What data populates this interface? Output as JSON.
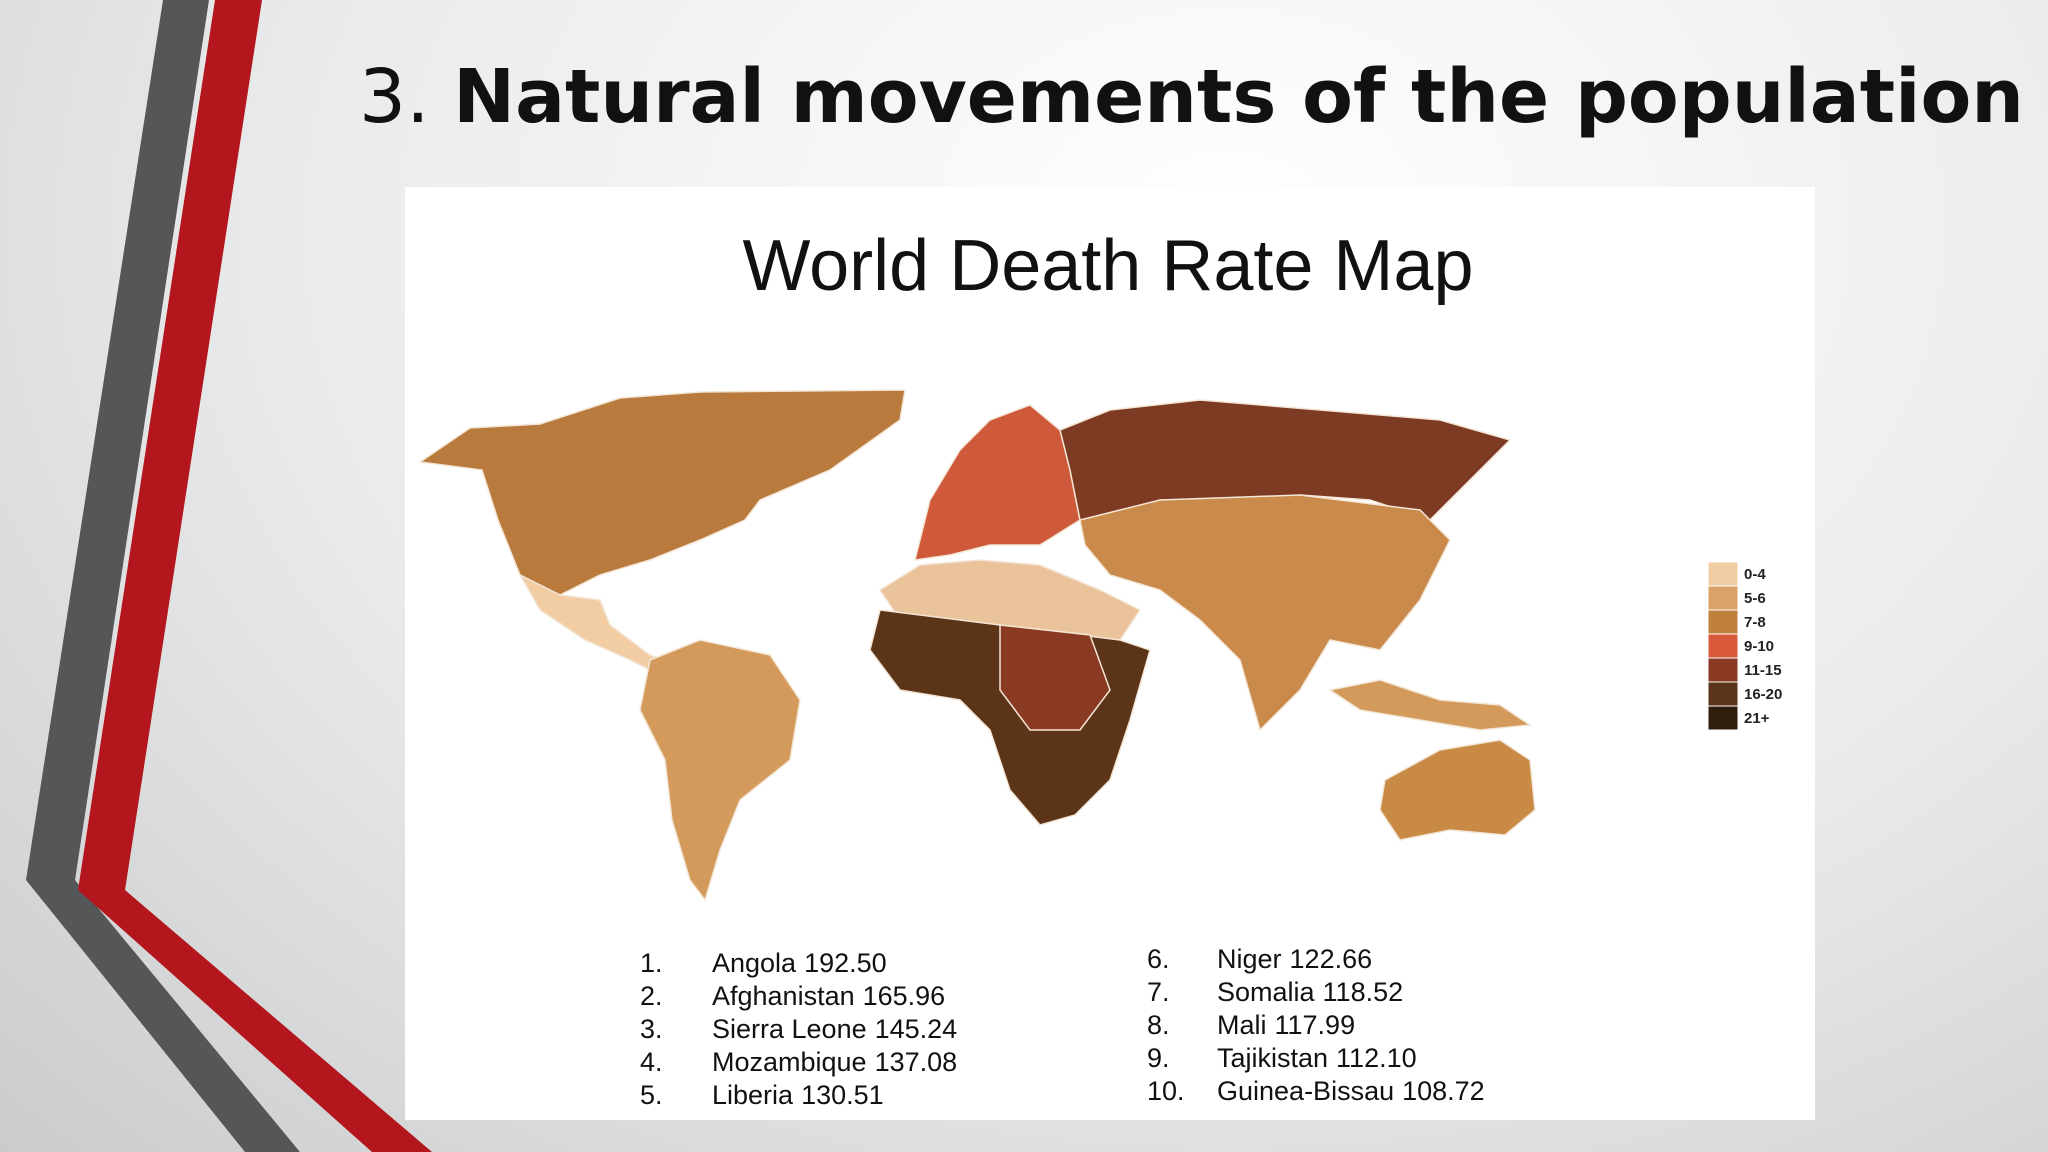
{
  "header": {
    "number": "3.",
    "title": "Natural movements of the population"
  },
  "figure": {
    "title": "World Death Rate Map",
    "legend": [
      {
        "label": "0-4",
        "color": "#f2cda4"
      },
      {
        "label": "5-6",
        "color": "#d9a266"
      },
      {
        "label": "7-8",
        "color": "#c0803e"
      },
      {
        "label": "9-10",
        "color": "#d9583a"
      },
      {
        "label": "11-15",
        "color": "#8a3a22"
      },
      {
        "label": "16-20",
        "color": "#5a3519"
      },
      {
        "label": "21+",
        "color": "#2f1d0e"
      }
    ],
    "ranking": [
      {
        "rank": "1.",
        "country": "Angola",
        "value": "192.50"
      },
      {
        "rank": "2.",
        "country": "Afghanistan",
        "value": "165.96"
      },
      {
        "rank": "3.",
        "country": "Sierra Leone",
        "value": "145.24"
      },
      {
        "rank": "4.",
        "country": "Mozambique",
        "value": "137.08"
      },
      {
        "rank": "5.",
        "country": "Liberia",
        "value": "130.51"
      },
      {
        "rank": "6.",
        "country": "Niger",
        "value": "122.66"
      },
      {
        "rank": "7.",
        "country": "Somalia",
        "value": "118.52"
      },
      {
        "rank": "8.",
        "country": "Mali",
        "value": "117.99"
      },
      {
        "rank": "9.",
        "country": "Tajikistan",
        "value": "112.10"
      },
      {
        "rank": "10.",
        "country": "Guinea-Bissau",
        "value": "108.72"
      }
    ]
  }
}
